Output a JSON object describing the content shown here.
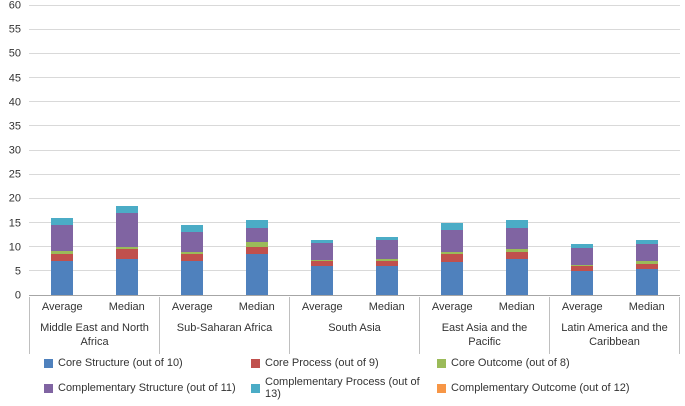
{
  "chart_data": {
    "type": "bar",
    "stacked": true,
    "title": "",
    "xlabel": "",
    "ylabel": "",
    "ylim": [
      0,
      60
    ],
    "ytick_step": 5,
    "yticks": [
      0,
      5,
      10,
      15,
      20,
      25,
      30,
      35,
      40,
      45,
      50,
      55,
      60
    ],
    "grid": "horizontal",
    "legend_position": "bottom",
    "series": [
      {
        "name": "Core Structure (out of 10)",
        "color": "#4F81BD"
      },
      {
        "name": "Core Process (out of 9)",
        "color": "#C0504D"
      },
      {
        "name": "Core Outcome (out of 8)",
        "color": "#9BBB59"
      },
      {
        "name": "Complementary Structure (out of 11)",
        "color": "#8064A2"
      },
      {
        "name": "Complementary Process (out of 13)",
        "color": "#4BACC6"
      },
      {
        "name": "Complementary Outcome (out of 12)",
        "color": "#F79646"
      }
    ],
    "groups": [
      {
        "region": "Middle East and North Africa",
        "bars": [
          {
            "label": "Average",
            "values": [
              7,
              1.6,
              0.5,
              5.4,
              1.5,
              0
            ]
          },
          {
            "label": "Median",
            "values": [
              7.5,
              2,
              0.5,
              7,
              1.5,
              0
            ]
          }
        ]
      },
      {
        "region": "Sub-Saharan Africa",
        "bars": [
          {
            "label": "Average",
            "values": [
              7,
              1.5,
              0.5,
              4,
              1.5,
              0
            ]
          },
          {
            "label": "Median",
            "values": [
              8.5,
              1.5,
              1,
              3,
              1.5,
              0
            ]
          }
        ]
      },
      {
        "region": "South Asia",
        "bars": [
          {
            "label": "Average",
            "values": [
              6,
              1,
              0.3,
              3.5,
              0.7,
              0
            ]
          },
          {
            "label": "Median",
            "values": [
              6,
              1,
              0.5,
              4,
              0.5,
              0
            ]
          }
        ]
      },
      {
        "region": "East Asia and the Pacific",
        "bars": [
          {
            "label": "Average",
            "values": [
              6.8,
              1.7,
              0.5,
              4.5,
              1.5,
              0
            ]
          },
          {
            "label": "Median",
            "values": [
              7.5,
              1.5,
              0.5,
              4.5,
              1.5,
              0
            ]
          }
        ]
      },
      {
        "region": "Latin America and the Caribbean",
        "bars": [
          {
            "label": "Average",
            "values": [
              5,
              1,
              0.3,
              3.5,
              0.7,
              0
            ]
          },
          {
            "label": "Median",
            "values": [
              5.5,
              1,
              0.5,
              3.5,
              1,
              0
            ]
          }
        ]
      }
    ]
  }
}
